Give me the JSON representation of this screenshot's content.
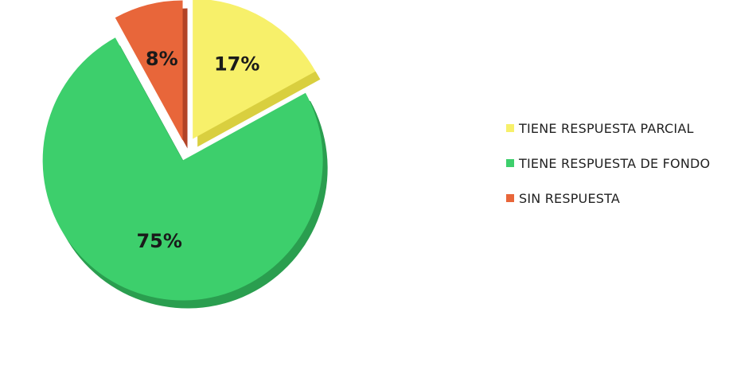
{
  "chart_data": {
    "type": "pie",
    "style": "3d-exploded",
    "categories": [
      "TIENE RESPUESTA PARCIAL",
      "TIENE RESPUESTA DE FONDO",
      "SIN RESPUESTA"
    ],
    "values": [
      17,
      75,
      8
    ],
    "labels": [
      "17%",
      "75%",
      "8%"
    ],
    "colors": [
      "#f7f06a",
      "#3dcf6c",
      "#e8663a"
    ],
    "side_colors": [
      "#d9cf3f",
      "#2a9e4f",
      "#b24326"
    ],
    "legend": {
      "position": "right",
      "entries": [
        {
          "label": "TIENE RESPUESTA PARCIAL",
          "color": "#f7f06a"
        },
        {
          "label": "TIENE RESPUESTA DE FONDO",
          "color": "#3dcf6c"
        },
        {
          "label": "SIN RESPUESTA",
          "color": "#e8663a"
        }
      ]
    }
  }
}
